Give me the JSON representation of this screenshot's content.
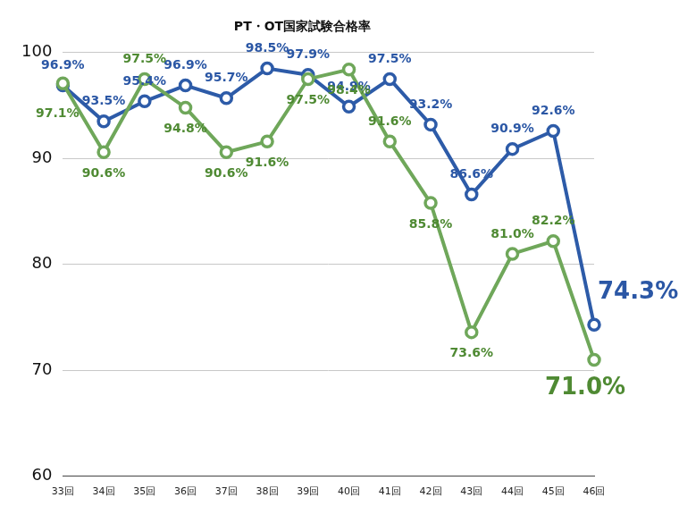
{
  "chart_data": {
    "type": "line",
    "title": "PT・OT国家試験合格率",
    "categories": [
      "33回",
      "34回",
      "35回",
      "36回",
      "37回",
      "38回",
      "39回",
      "40回",
      "41回",
      "42回",
      "43回",
      "44回",
      "45回",
      "46回"
    ],
    "series": [
      {
        "color": "#2d5ba8",
        "marker": "circle",
        "values": [
          96.9,
          93.5,
          95.4,
          96.9,
          95.7,
          98.5,
          97.9,
          94.9,
          97.5,
          93.2,
          86.6,
          90.9,
          92.6,
          74.3
        ],
        "value_labels": [
          "96.9%",
          "93.5%",
          "95.4%",
          "96.9%",
          "95.7%",
          "98.5%",
          "97.9%",
          "94.9%",
          "97.5%",
          "93.2%",
          "86.6%",
          "90.9%",
          "92.6%",
          "74.3%"
        ]
      },
      {
        "color": "#6fa75a",
        "marker": "circle",
        "values": [
          97.1,
          90.6,
          97.5,
          94.8,
          90.6,
          91.6,
          97.5,
          98.4,
          91.6,
          85.8,
          73.6,
          81.0,
          82.2,
          71.0
        ],
        "value_labels": [
          "97.1%",
          "90.6%",
          "97.5%",
          "94.8%",
          "90.6%",
          "91.6%",
          "97.5%",
          "98.4%",
          "91.6%",
          "85.8%",
          "73.6%",
          "81.0%",
          "82.2%",
          "71.0%"
        ]
      }
    ],
    "ylim": [
      60,
      100
    ],
    "yticks": [
      60,
      70,
      80,
      90,
      100
    ],
    "grid": true,
    "data_labels": true
  }
}
